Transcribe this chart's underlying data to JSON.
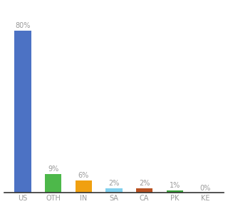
{
  "categories": [
    "US",
    "OTH",
    "IN",
    "SA",
    "CA",
    "PK",
    "KE"
  ],
  "values": [
    80,
    9,
    6,
    2,
    2,
    1,
    0
  ],
  "labels": [
    "80%",
    "9%",
    "6%",
    "2%",
    "2%",
    "1%",
    "0%"
  ],
  "bar_colors": [
    "#4c72c4",
    "#4db84a",
    "#f0a010",
    "#80d0ee",
    "#b85020",
    "#38a038",
    "#4c72c4"
  ],
  "ylim": [
    0,
    92
  ],
  "label_fontsize": 7.0,
  "tick_fontsize": 7.0,
  "label_color": "#999999",
  "tick_color": "#999999",
  "background_color": "#ffffff",
  "bar_width": 0.55
}
